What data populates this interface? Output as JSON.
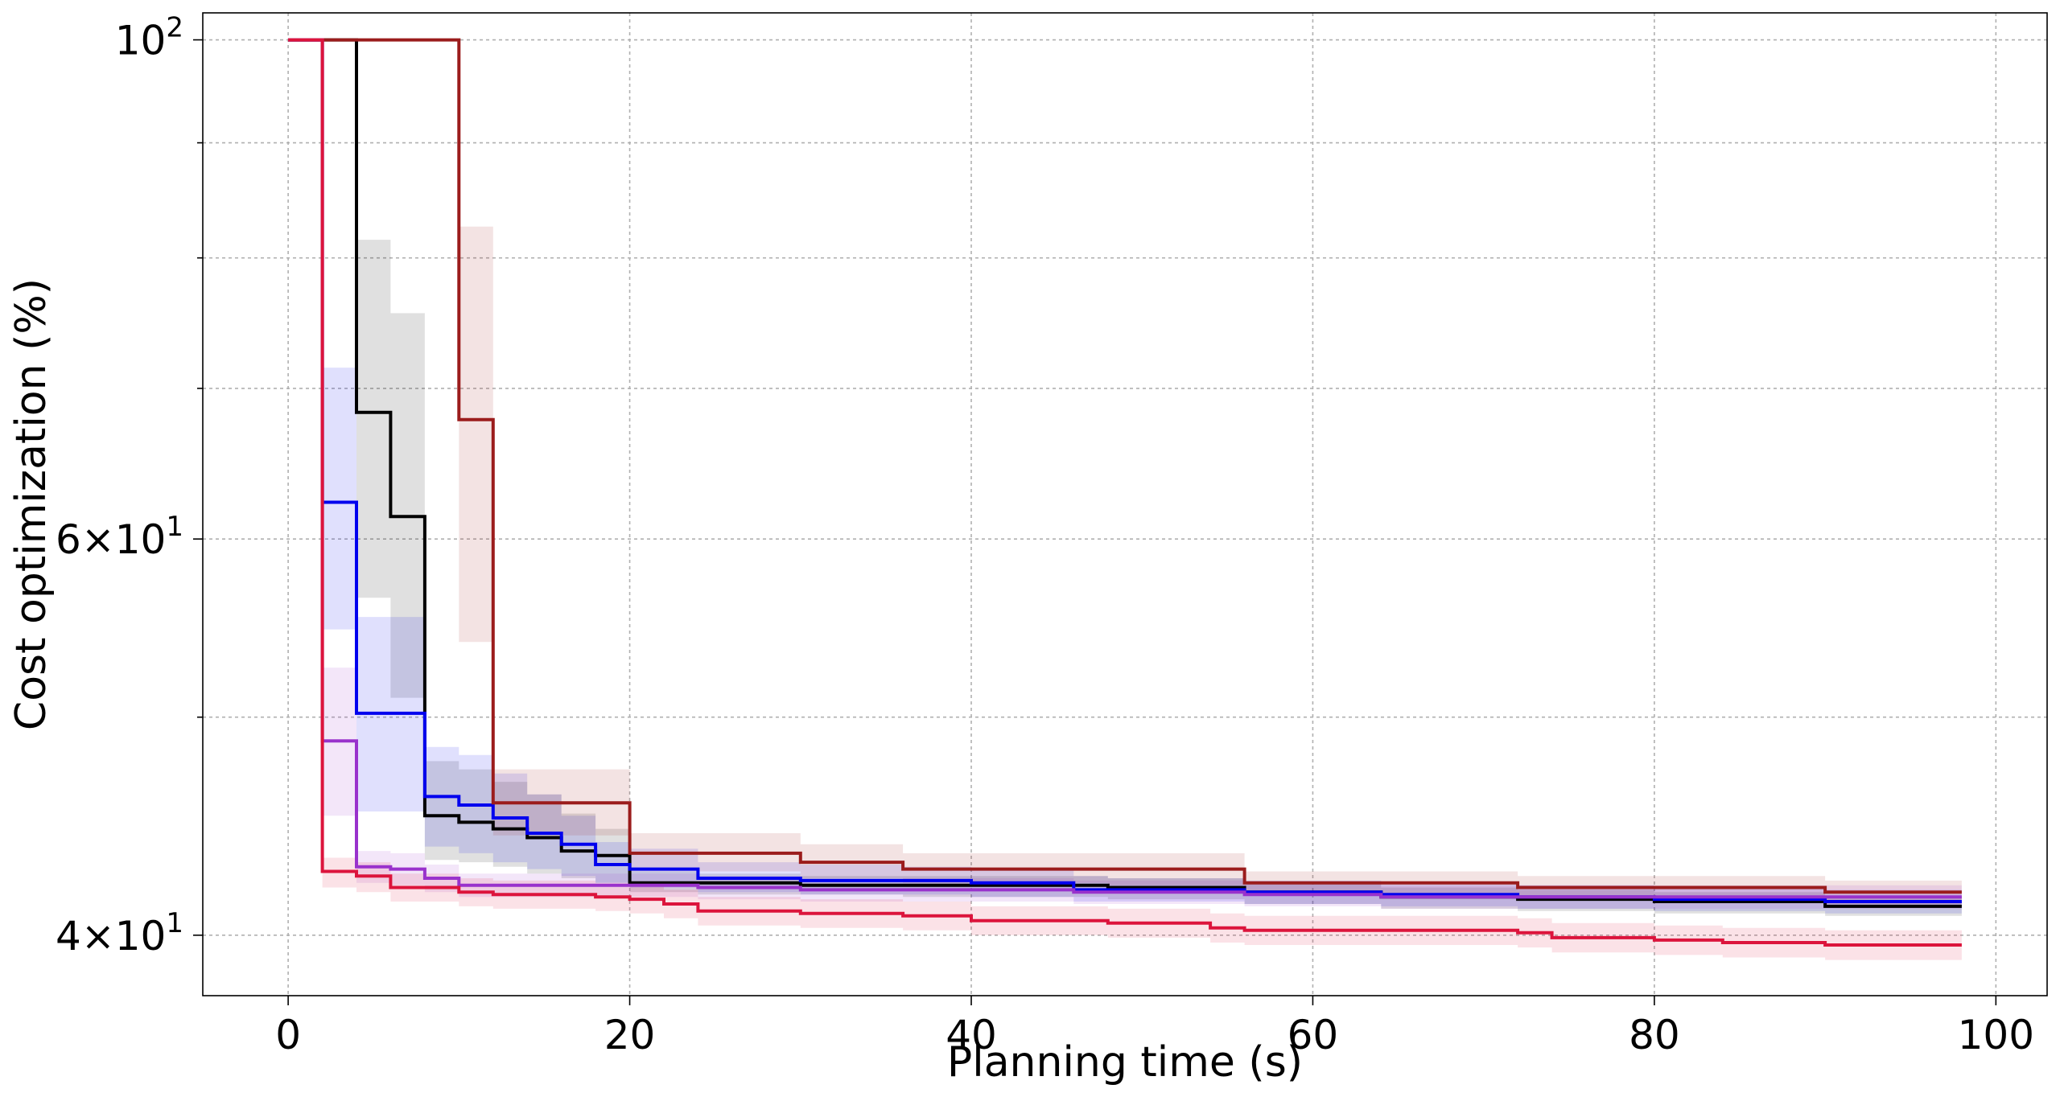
{
  "chart_data": {
    "type": "line",
    "xlabel": "Planning time (s)",
    "ylabel": "Cost optimization (%)",
    "xlim": [
      -5,
      103
    ],
    "ylim": [
      37.6,
      102.8
    ],
    "yscale": "log",
    "grid": true,
    "x_ticks": [
      {
        "value": 0,
        "label": "0"
      },
      {
        "value": 20,
        "label": "20"
      },
      {
        "value": 40,
        "label": "40"
      },
      {
        "value": 60,
        "label": "60"
      },
      {
        "value": 80,
        "label": "80"
      },
      {
        "value": 100,
        "label": "100"
      }
    ],
    "y_ticks_major": [
      {
        "value": 40,
        "base": "4",
        "exp": "1"
      },
      {
        "value": 60,
        "base": "6",
        "exp": "1"
      },
      {
        "value": 100,
        "base": "10",
        "exp": "2"
      }
    ],
    "y_ticks_minor": [
      50,
      70,
      80,
      90
    ],
    "series": [
      {
        "color": "#000000",
        "x": [
          0,
          2,
          4,
          6,
          8,
          10,
          12,
          14,
          16,
          18,
          20,
          24,
          30,
          36,
          40,
          46,
          48,
          56,
          64,
          72,
          80,
          90,
          98
        ],
        "y": [
          100,
          100,
          68.3,
          61.4,
          45.2,
          44.9,
          44.6,
          44.2,
          43.6,
          43.4,
          42.2,
          42.2,
          42.1,
          42.1,
          42.1,
          42.1,
          42.0,
          41.8,
          41.6,
          41.5,
          41.4,
          41.2,
          41.2
        ],
        "lo": [
          100,
          100,
          56.5,
          51.0,
          43.2,
          43.1,
          42.9,
          42.6,
          42.4,
          42.2,
          41.8,
          41.7,
          41.7,
          41.6,
          41.6,
          41.6,
          41.5,
          41.3,
          41.1,
          41.0,
          40.9,
          40.8,
          40.8
        ],
        "hi": [
          100,
          100,
          81.5,
          75.6,
          47.8,
          47.4,
          46.8,
          46.2,
          45.3,
          44.6,
          42.7,
          42.6,
          42.5,
          42.5,
          42.5,
          42.5,
          42.4,
          42.2,
          42.0,
          41.9,
          41.8,
          41.6,
          41.6
        ]
      },
      {
        "color": "#0000ee",
        "x": [
          0,
          2,
          4,
          6,
          8,
          10,
          12,
          14,
          16,
          18,
          20,
          24,
          30,
          36,
          40,
          46,
          48,
          56,
          64,
          72,
          80,
          90,
          98
        ],
        "y": [
          100,
          62.3,
          50.2,
          50.2,
          46.1,
          45.7,
          45.1,
          44.4,
          43.9,
          43.0,
          42.8,
          42.4,
          42.3,
          42.3,
          42.2,
          41.9,
          41.9,
          41.8,
          41.7,
          41.6,
          41.5,
          41.4,
          41.4
        ],
        "lo": [
          100,
          54.7,
          45.4,
          45.4,
          43.8,
          43.5,
          43.1,
          42.8,
          42.5,
          42.2,
          42.0,
          41.8,
          41.7,
          41.7,
          41.6,
          41.4,
          41.4,
          41.3,
          41.2,
          41.1,
          41.0,
          40.9,
          40.9
        ],
        "hi": [
          100,
          71.5,
          55.4,
          55.4,
          48.5,
          48.1,
          47.2,
          46.2,
          45.2,
          44.0,
          43.7,
          43.1,
          43.0,
          42.9,
          42.8,
          42.5,
          42.4,
          42.3,
          42.2,
          42.1,
          42.0,
          41.9,
          41.9
        ]
      },
      {
        "color": "#9b1c1c",
        "x": [
          0,
          2,
          4,
          6,
          8,
          10,
          12,
          14,
          16,
          18,
          20,
          24,
          30,
          36,
          40,
          46,
          48,
          56,
          64,
          72,
          80,
          90,
          98
        ],
        "y": [
          100,
          100,
          100,
          100,
          100,
          67.8,
          45.8,
          45.8,
          45.8,
          45.8,
          43.5,
          43.5,
          43.1,
          42.8,
          42.8,
          42.8,
          42.8,
          42.2,
          42.2,
          42.0,
          42.0,
          41.8,
          41.8
        ],
        "lo": [
          100,
          100,
          100,
          100,
          100,
          54.0,
          44.3,
          44.3,
          44.3,
          44.3,
          42.7,
          42.7,
          42.4,
          42.2,
          42.2,
          42.2,
          42.1,
          41.7,
          41.7,
          41.5,
          41.5,
          41.3,
          41.3
        ],
        "hi": [
          100,
          100,
          100,
          100,
          100,
          82.6,
          47.4,
          47.4,
          47.4,
          47.4,
          44.4,
          44.4,
          43.9,
          43.5,
          43.5,
          43.5,
          43.5,
          42.7,
          42.7,
          42.5,
          42.5,
          42.3,
          42.3
        ]
      },
      {
        "color": "#9932cc",
        "x": [
          0,
          2,
          4,
          6,
          8,
          10,
          12,
          14,
          16,
          18,
          20,
          24,
          30,
          36,
          40,
          46,
          48,
          56,
          64,
          72,
          80,
          90,
          98
        ],
        "y": [
          100,
          48.8,
          42.9,
          42.8,
          42.4,
          42.1,
          42.1,
          42.1,
          42.1,
          42.1,
          42.1,
          42.0,
          41.9,
          41.9,
          41.9,
          41.8,
          41.8,
          41.7,
          41.6,
          41.6,
          41.6,
          41.6,
          41.6
        ],
        "lo": [
          100,
          45.2,
          42.2,
          42.1,
          41.8,
          41.6,
          41.6,
          41.6,
          41.6,
          41.6,
          41.6,
          41.5,
          41.4,
          41.4,
          41.4,
          41.3,
          41.3,
          41.2,
          41.1,
          41.1,
          41.1,
          41.1,
          41.1
        ],
        "hi": [
          100,
          52.6,
          43.6,
          43.5,
          43.0,
          42.6,
          42.6,
          42.6,
          42.6,
          42.6,
          42.6,
          42.5,
          42.4,
          42.4,
          42.4,
          42.3,
          42.3,
          42.2,
          42.1,
          42.1,
          42.1,
          42.1,
          42.1
        ]
      },
      {
        "color": "#dc143c",
        "x": [
          0,
          2,
          4,
          6,
          8,
          10,
          12,
          14,
          16,
          18,
          20,
          22,
          24,
          30,
          36,
          40,
          46,
          48,
          54,
          56,
          64,
          72,
          74,
          80,
          84,
          90,
          98
        ],
        "y": [
          100,
          42.7,
          42.5,
          42.0,
          42.0,
          41.8,
          41.7,
          41.7,
          41.7,
          41.6,
          41.5,
          41.3,
          41.0,
          40.9,
          40.8,
          40.6,
          40.6,
          40.5,
          40.3,
          40.2,
          40.2,
          40.1,
          39.9,
          39.8,
          39.7,
          39.6,
          39.6
        ],
        "lo": [
          100,
          42.0,
          41.8,
          41.4,
          41.4,
          41.2,
          41.1,
          41.1,
          41.1,
          41.0,
          40.9,
          40.7,
          40.4,
          40.3,
          40.2,
          40.0,
          40.0,
          39.9,
          39.7,
          39.6,
          39.6,
          39.5,
          39.3,
          39.2,
          39.1,
          39.0,
          39.0
        ],
        "hi": [
          100,
          43.3,
          43.1,
          42.6,
          42.6,
          42.4,
          42.3,
          42.3,
          42.3,
          42.2,
          42.1,
          41.9,
          41.6,
          41.5,
          41.4,
          41.2,
          41.2,
          41.1,
          40.9,
          40.8,
          40.8,
          40.7,
          40.5,
          40.4,
          40.3,
          40.2,
          40.2
        ]
      }
    ]
  }
}
